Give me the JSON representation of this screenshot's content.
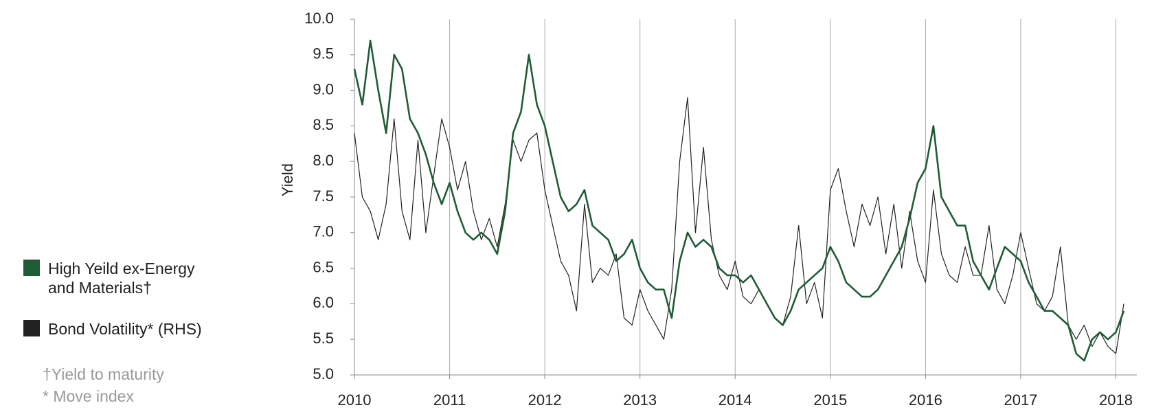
{
  "chart_data": {
    "type": "line",
    "y_label": "Yield",
    "x": [
      2010,
      2010.083,
      2010.167,
      2010.25,
      2010.333,
      2010.417,
      2010.5,
      2010.583,
      2010.667,
      2010.75,
      2010.833,
      2010.917,
      2011,
      2011.083,
      2011.167,
      2011.25,
      2011.333,
      2011.417,
      2011.5,
      2011.583,
      2011.667,
      2011.75,
      2011.833,
      2011.917,
      2012,
      2012.083,
      2012.167,
      2012.25,
      2012.333,
      2012.417,
      2012.5,
      2012.583,
      2012.667,
      2012.75,
      2012.833,
      2012.917,
      2013,
      2013.083,
      2013.167,
      2013.25,
      2013.333,
      2013.417,
      2013.5,
      2013.583,
      2013.667,
      2013.75,
      2013.833,
      2013.917,
      2014,
      2014.083,
      2014.167,
      2014.25,
      2014.333,
      2014.417,
      2014.5,
      2014.583,
      2014.667,
      2014.75,
      2014.833,
      2014.917,
      2015,
      2015.083,
      2015.167,
      2015.25,
      2015.333,
      2015.417,
      2015.5,
      2015.583,
      2015.667,
      2015.75,
      2015.833,
      2015.917,
      2016,
      2016.083,
      2016.167,
      2016.25,
      2016.333,
      2016.417,
      2016.5,
      2016.583,
      2016.667,
      2016.75,
      2016.833,
      2016.917,
      2017,
      2017.083,
      2017.167,
      2017.25,
      2017.333,
      2017.417,
      2017.5,
      2017.583,
      2017.667,
      2017.75,
      2017.833,
      2017.917,
      2018,
      2018.083
    ],
    "series": [
      {
        "name": "High Yeild ex-Energy and Materials†",
        "color": "#1e5c36",
        "values": [
          9.3,
          8.8,
          9.7,
          9.0,
          8.4,
          9.5,
          9.3,
          8.6,
          8.4,
          8.1,
          7.7,
          7.4,
          7.7,
          7.3,
          7.0,
          6.9,
          7.0,
          6.9,
          6.7,
          7.3,
          8.4,
          8.7,
          9.5,
          8.8,
          8.5,
          8.0,
          7.5,
          7.3,
          7.4,
          7.6,
          7.1,
          7.0,
          6.9,
          6.6,
          6.7,
          6.9,
          6.5,
          6.3,
          6.2,
          6.2,
          5.8,
          6.6,
          7.0,
          6.8,
          6.9,
          6.8,
          6.5,
          6.4,
          6.4,
          6.3,
          6.4,
          6.2,
          6.0,
          5.8,
          5.7,
          5.9,
          6.2,
          6.3,
          6.4,
          6.5,
          6.8,
          6.6,
          6.3,
          6.2,
          6.1,
          6.1,
          6.2,
          6.4,
          6.6,
          6.8,
          7.2,
          7.7,
          7.9,
          8.5,
          7.5,
          7.3,
          7.1,
          7.1,
          6.6,
          6.4,
          6.2,
          6.5,
          6.8,
          6.7,
          6.6,
          6.3,
          6.1,
          5.9,
          5.9,
          5.8,
          5.7,
          5.3,
          5.2,
          5.5,
          5.6,
          5.5,
          5.6,
          5.9
        ]
      },
      {
        "name": "Bond Volatility* (RHS)",
        "color": "#222222",
        "values": [
          8.4,
          7.5,
          7.3,
          6.9,
          7.4,
          8.6,
          7.3,
          6.9,
          8.3,
          7.0,
          7.8,
          8.6,
          8.2,
          7.6,
          8.0,
          7.3,
          6.9,
          7.2,
          6.8,
          7.4,
          8.3,
          8.0,
          8.3,
          8.4,
          7.6,
          7.1,
          6.6,
          6.4,
          5.9,
          7.4,
          6.3,
          6.5,
          6.4,
          6.7,
          5.8,
          5.7,
          6.2,
          5.9,
          5.7,
          5.5,
          6.2,
          8.0,
          8.9,
          7.0,
          8.2,
          6.9,
          6.4,
          6.2,
          6.6,
          6.1,
          6.0,
          6.2,
          6.0,
          5.8,
          5.7,
          6.1,
          7.1,
          6.0,
          6.3,
          5.8,
          7.6,
          7.9,
          7.3,
          6.8,
          7.4,
          7.1,
          7.5,
          6.7,
          7.4,
          6.5,
          7.3,
          6.6,
          6.3,
          7.6,
          6.7,
          6.4,
          6.3,
          6.8,
          6.4,
          6.4,
          7.1,
          6.2,
          6.0,
          6.4,
          7.0,
          6.5,
          6.0,
          5.9,
          6.1,
          6.8,
          5.7,
          5.5,
          5.7,
          5.4,
          5.6,
          5.4,
          5.3,
          6.0
        ]
      }
    ],
    "xlim": [
      2010,
      2018.22
    ],
    "xticks": [
      2010,
      2011,
      2012,
      2013,
      2014,
      2015,
      2016,
      2017,
      2018
    ],
    "ylim": [
      5,
      10
    ],
    "yticks": [
      {
        "value": 5,
        "label": "5.0"
      },
      5.5,
      {
        "value": 6,
        "label": "6.0"
      },
      6.5,
      {
        "value": 7,
        "label": "7.0"
      },
      7.5,
      {
        "value": 8,
        "label": "8.0"
      },
      8.5,
      {
        "value": 9,
        "label": "9.0"
      },
      9.5,
      {
        "value": 10,
        "label": "10.0"
      }
    ],
    "grid": "x",
    "footnotes": [
      "†Yield to maturity",
      "* Move index"
    ]
  }
}
